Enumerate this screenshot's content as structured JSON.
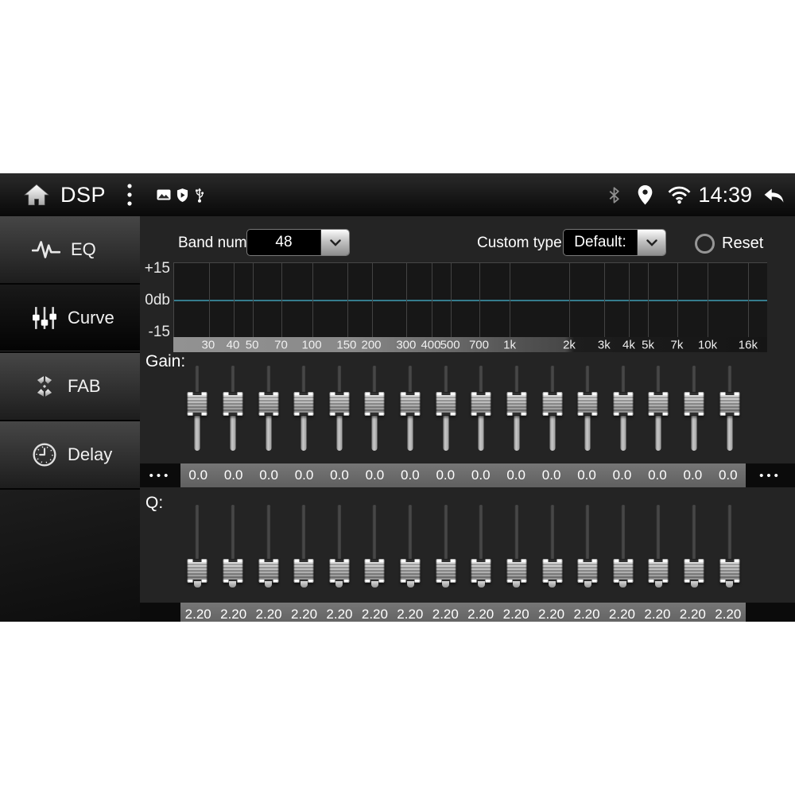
{
  "status_bar": {
    "title": "DSP",
    "time": "14:39"
  },
  "sidebar": {
    "items": [
      {
        "label": "EQ",
        "selected": false
      },
      {
        "label": "Curve",
        "selected": true
      },
      {
        "label": "FAB",
        "selected": false
      },
      {
        "label": "Delay",
        "selected": false
      }
    ]
  },
  "controls": {
    "band_num_label": "Band num:",
    "band_num_value": "48",
    "custom_type_label": "Custom type:",
    "custom_type_value": "Default:",
    "reset_label": "Reset"
  },
  "chart_data": {
    "type": "line",
    "x_scale": "log",
    "x_range_hz": [
      20,
      20000
    ],
    "ylim_db": [
      -15,
      15
    ],
    "y_tick_labels": [
      "+15",
      "0db",
      "-15"
    ],
    "x_tick_labels": [
      {
        "label": "30",
        "hz": 30
      },
      {
        "label": "40",
        "hz": 40
      },
      {
        "label": "50",
        "hz": 50
      },
      {
        "label": "70",
        "hz": 70
      },
      {
        "label": "100",
        "hz": 100
      },
      {
        "label": "150",
        "hz": 150
      },
      {
        "label": "200",
        "hz": 200
      },
      {
        "label": "300",
        "hz": 300
      },
      {
        "label": "400",
        "hz": 400
      },
      {
        "label": "500",
        "hz": 500
      },
      {
        "label": "700",
        "hz": 700
      },
      {
        "label": "1k",
        "hz": 1000
      },
      {
        "label": "2k",
        "hz": 2000
      },
      {
        "label": "3k",
        "hz": 3000
      },
      {
        "label": "4k",
        "hz": 4000
      },
      {
        "label": "5k",
        "hz": 5000
      },
      {
        "label": "7k",
        "hz": 7000
      },
      {
        "label": "10k",
        "hz": 10000
      },
      {
        "label": "16k",
        "hz": 16000
      }
    ],
    "series": [
      {
        "name": "eq-response-curve",
        "flat_value_db": 0.0,
        "color": "#357c8d"
      }
    ]
  },
  "gain": {
    "label": "Gain:",
    "more_left": "•••",
    "more_right": "•••",
    "values": [
      "0.0",
      "0.0",
      "0.0",
      "0.0",
      "0.0",
      "0.0",
      "0.0",
      "0.0",
      "0.0",
      "0.0",
      "0.0",
      "0.0",
      "0.0",
      "0.0",
      "0.0",
      "0.0"
    ]
  },
  "q": {
    "label": "Q:",
    "values": [
      "2.20",
      "2.20",
      "2.20",
      "2.20",
      "2.20",
      "2.20",
      "2.20",
      "2.20",
      "2.20",
      "2.20",
      "2.20",
      "2.20",
      "2.20",
      "2.20",
      "2.20",
      "2.20"
    ]
  }
}
